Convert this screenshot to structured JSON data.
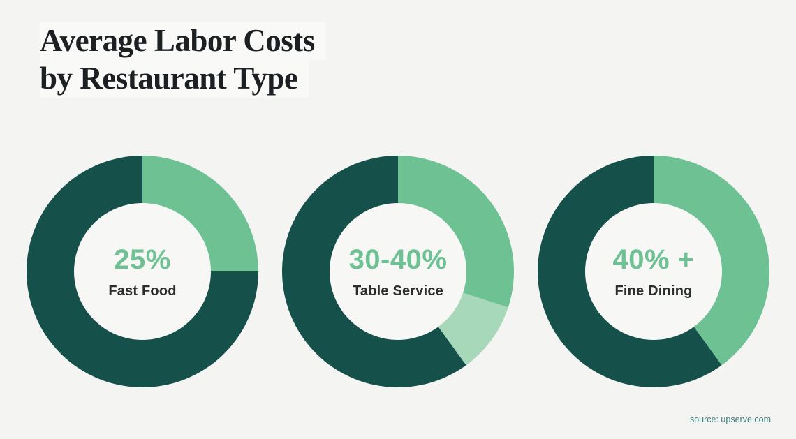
{
  "page": {
    "background_color": "#f4f5f2",
    "title_line1": "Average Labor Costs",
    "title_line2": "by Restaurant Type",
    "source_credit": "source: upserve.com"
  },
  "colors": {
    "green": "#6ec193",
    "pale_green": "#a8d8ba",
    "dark_teal": "#16504b",
    "title_text": "#1d2023",
    "value_text": "#6ec193",
    "label_text": "#2b2e2e",
    "source_text": "#3b7d7e"
  },
  "chart_data": [
    {
      "type": "pie",
      "variant": "donut",
      "label": "Fast Food",
      "value_label": "25%",
      "start_angle_deg": 0,
      "segments": [
        {
          "name": "labor-cost",
          "percent": 25,
          "color_key": "green"
        },
        {
          "name": "remainder",
          "percent": 75,
          "color_key": "dark_teal"
        }
      ]
    },
    {
      "type": "pie",
      "variant": "donut",
      "label": "Table Service",
      "value_label": "30-40%",
      "start_angle_deg": 0,
      "segments": [
        {
          "name": "labor-cost-min",
          "percent": 30,
          "color_key": "green"
        },
        {
          "name": "labor-cost-upper-range",
          "percent": 10,
          "color_key": "pale_green"
        },
        {
          "name": "remainder",
          "percent": 60,
          "color_key": "dark_teal"
        }
      ]
    },
    {
      "type": "pie",
      "variant": "donut",
      "label": "Fine Dining",
      "value_label": "40% +",
      "start_angle_deg": 0,
      "segments": [
        {
          "name": "labor-cost",
          "percent": 40,
          "color_key": "green"
        },
        {
          "name": "remainder",
          "percent": 60,
          "color_key": "dark_teal"
        }
      ]
    }
  ]
}
